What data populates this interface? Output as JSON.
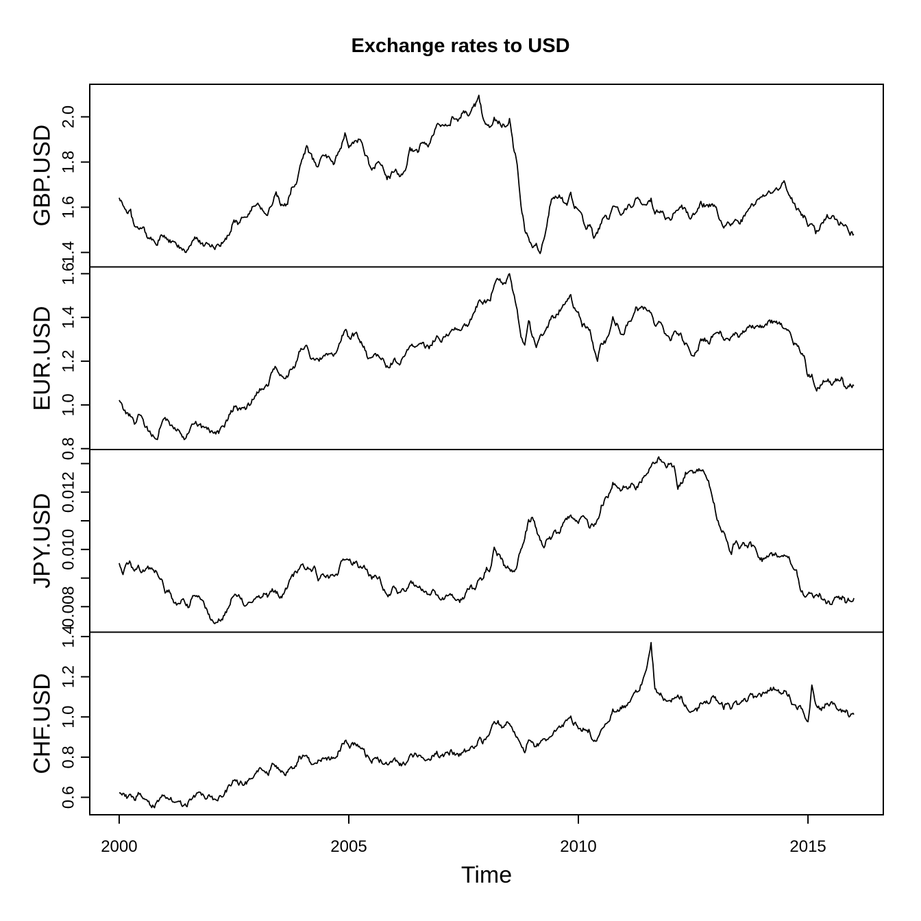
{
  "chart_data": {
    "type": "line",
    "title": "Exchange rates to USD",
    "xlabel": "Time",
    "line_color": "#000000",
    "background_color": "#ffffff",
    "grid": false,
    "legend": "none",
    "xlim": [
      1999.36,
      2016.64
    ],
    "x_tick_values": [
      2000,
      2005,
      2010,
      2015
    ],
    "x_tick_labels": [
      "2000",
      "2005",
      "2010",
      "2015"
    ],
    "x_start": 2000.0,
    "x_step_years": 0.0833333,
    "x_end": 2016.0,
    "panels": [
      {
        "label": "GBP.USD",
        "ylim": [
          1.336,
          2.144
        ],
        "ytick_values": [
          1.4,
          1.6,
          1.8,
          2.0
        ],
        "ytick_labels": [
          "1.4",
          "1.6",
          "1.8",
          "2.0"
        ],
        "values": [
          1.642,
          1.61,
          1.583,
          1.58,
          1.51,
          1.505,
          1.51,
          1.49,
          1.45,
          1.462,
          1.432,
          1.483,
          1.47,
          1.452,
          1.44,
          1.432,
          1.42,
          1.402,
          1.412,
          1.44,
          1.462,
          1.452,
          1.43,
          1.452,
          1.43,
          1.421,
          1.422,
          1.44,
          1.462,
          1.49,
          1.552,
          1.53,
          1.552,
          1.56,
          1.572,
          1.601,
          1.62,
          1.6,
          1.582,
          1.578,
          1.622,
          1.66,
          1.62,
          1.59,
          1.622,
          1.68,
          1.69,
          1.752,
          1.82,
          1.868,
          1.83,
          1.8,
          1.782,
          1.82,
          1.84,
          1.81,
          1.79,
          1.83,
          1.86,
          1.932,
          1.878,
          1.89,
          1.89,
          1.9,
          1.85,
          1.81,
          1.752,
          1.78,
          1.8,
          1.77,
          1.73,
          1.74,
          1.77,
          1.748,
          1.74,
          1.77,
          1.868,
          1.84,
          1.84,
          1.89,
          1.88,
          1.88,
          1.91,
          1.962,
          1.96,
          1.958,
          1.951,
          1.99,
          1.982,
          1.99,
          2.032,
          2.01,
          2.022,
          2.05,
          2.09,
          2.002,
          1.972,
          1.962,
          1.99,
          1.98,
          1.962,
          1.962,
          1.99,
          1.87,
          1.8,
          1.62,
          1.5,
          1.468,
          1.42,
          1.432,
          1.405,
          1.47,
          1.552,
          1.642,
          1.64,
          1.652,
          1.63,
          1.62,
          1.66,
          1.61,
          1.6,
          1.562,
          1.51,
          1.532,
          1.462,
          1.48,
          1.532,
          1.57,
          1.552,
          1.59,
          1.6,
          1.56,
          1.58,
          1.61,
          1.608,
          1.64,
          1.632,
          1.62,
          1.61,
          1.632,
          1.572,
          1.578,
          1.59,
          1.552,
          1.552,
          1.58,
          1.582,
          1.6,
          1.59,
          1.552,
          1.56,
          1.57,
          1.612,
          1.61,
          1.6,
          1.618,
          1.59,
          1.552,
          1.51,
          1.53,
          1.528,
          1.54,
          1.52,
          1.55,
          1.582,
          1.61,
          1.61,
          1.642,
          1.65,
          1.662,
          1.662,
          1.68,
          1.682,
          1.7,
          1.712,
          1.67,
          1.63,
          1.6,
          1.578,
          1.558,
          1.52,
          1.542,
          1.49,
          1.508,
          1.53,
          1.562,
          1.56,
          1.552,
          1.53,
          1.532,
          1.51,
          1.49,
          1.48
        ]
      },
      {
        "label": "EUR.USD",
        "ylim": [
          0.796,
          1.631
        ],
        "ytick_values": [
          0.8,
          1.0,
          1.2,
          1.4,
          1.6
        ],
        "ytick_labels": [
          "0.8",
          "1.0",
          "1.2",
          "1.4",
          "1.6"
        ],
        "values": [
          1.022,
          0.983,
          0.962,
          0.948,
          0.908,
          0.952,
          0.94,
          0.9,
          0.872,
          0.85,
          0.858,
          0.92,
          0.94,
          0.922,
          0.9,
          0.892,
          0.872,
          0.852,
          0.862,
          0.9,
          0.912,
          0.906,
          0.888,
          0.89,
          0.88,
          0.87,
          0.876,
          0.89,
          0.92,
          0.958,
          0.99,
          0.978,
          0.982,
          0.982,
          1.0,
          1.032,
          1.062,
          1.078,
          1.08,
          1.088,
          1.158,
          1.168,
          1.13,
          1.11,
          1.13,
          1.17,
          1.172,
          1.242,
          1.262,
          1.268,
          1.228,
          1.2,
          1.2,
          1.212,
          1.228,
          1.22,
          1.222,
          1.25,
          1.3,
          1.35,
          1.31,
          1.32,
          1.318,
          1.292,
          1.268,
          1.216,
          1.204,
          1.23,
          1.222,
          1.2,
          1.178,
          1.19,
          1.21,
          1.192,
          1.202,
          1.23,
          1.28,
          1.268,
          1.268,
          1.28,
          1.272,
          1.262,
          1.29,
          1.32,
          1.3,
          1.31,
          1.33,
          1.352,
          1.35,
          1.342,
          1.372,
          1.362,
          1.39,
          1.432,
          1.47,
          1.458,
          1.472,
          1.48,
          1.552,
          1.578,
          1.558,
          1.558,
          1.59,
          1.5,
          1.432,
          1.31,
          1.272,
          1.4,
          1.31,
          1.272,
          1.302,
          1.32,
          1.362,
          1.402,
          1.41,
          1.43,
          1.458,
          1.482,
          1.498,
          1.44,
          1.432,
          1.368,
          1.358,
          1.34,
          1.258,
          1.212,
          1.28,
          1.29,
          1.308,
          1.39,
          1.368,
          1.322,
          1.34,
          1.368,
          1.402,
          1.448,
          1.432,
          1.44,
          1.43,
          1.432,
          1.37,
          1.372,
          1.358,
          1.308,
          1.292,
          1.322,
          1.32,
          1.316,
          1.28,
          1.242,
          1.222,
          1.24,
          1.29,
          1.298,
          1.282,
          1.312,
          1.33,
          1.338,
          1.3,
          1.302,
          1.3,
          1.32,
          1.31,
          1.332,
          1.34,
          1.362,
          1.35,
          1.372,
          1.362,
          1.37,
          1.382,
          1.382,
          1.372,
          1.362,
          1.352,
          1.332,
          1.29,
          1.268,
          1.248,
          1.218,
          1.13,
          1.132,
          1.062,
          1.082,
          1.118,
          1.12,
          1.098,
          1.112,
          1.122,
          1.12,
          1.062,
          1.09,
          1.088
        ]
      },
      {
        "label": "JPY.USD",
        "ylim": [
          0.00711,
          0.01349
        ],
        "ytick_values": [
          0.008,
          0.009,
          0.01,
          0.011,
          0.012,
          0.013
        ],
        "ytick_labels": [
          "0.008",
          "",
          "0.010",
          "",
          "0.012",
          ""
        ],
        "values": [
          0.00952,
          0.00917,
          0.00943,
          0.00952,
          0.00926,
          0.00943,
          0.00926,
          0.00926,
          0.00935,
          0.00926,
          0.00917,
          0.00893,
          0.00855,
          0.00862,
          0.0082,
          0.00806,
          0.0082,
          0.0082,
          0.008,
          0.00826,
          0.0084,
          0.00826,
          0.0082,
          0.00787,
          0.00752,
          0.00746,
          0.00763,
          0.00763,
          0.00787,
          0.00813,
          0.00847,
          0.0084,
          0.00826,
          0.00806,
          0.0082,
          0.0082,
          0.00847,
          0.0084,
          0.00847,
          0.00833,
          0.00855,
          0.00847,
          0.0084,
          0.0084,
          0.0087,
          0.00909,
          0.00917,
          0.00926,
          0.00943,
          0.00935,
          0.00926,
          0.00935,
          0.00893,
          0.00917,
          0.00909,
          0.00901,
          0.00909,
          0.00917,
          0.00952,
          0.00962,
          0.00971,
          0.00952,
          0.00952,
          0.00935,
          0.00935,
          0.00917,
          0.00893,
          0.00909,
          0.00901,
          0.0087,
          0.0084,
          0.00847,
          0.0087,
          0.00847,
          0.00855,
          0.00855,
          0.00893,
          0.00877,
          0.00862,
          0.00862,
          0.00855,
          0.0084,
          0.00855,
          0.00847,
          0.00833,
          0.00826,
          0.00847,
          0.0084,
          0.00826,
          0.0082,
          0.00826,
          0.00862,
          0.0087,
          0.00862,
          0.00901,
          0.00893,
          0.00935,
          0.00935,
          0.01,
          0.0098,
          0.00962,
          0.00935,
          0.00935,
          0.00917,
          0.00943,
          0.01,
          0.01042,
          0.01099,
          0.01111,
          0.01075,
          0.01031,
          0.0101,
          0.01042,
          0.01042,
          0.01064,
          0.01053,
          0.01099,
          0.01111,
          0.01124,
          0.01111,
          0.01099,
          0.01111,
          0.01111,
          0.01075,
          0.01087,
          0.01099,
          0.01149,
          0.01176,
          0.0119,
          0.01235,
          0.0122,
          0.01205,
          0.0122,
          0.01205,
          0.01235,
          0.01205,
          0.01235,
          0.0125,
          0.01266,
          0.01299,
          0.01299,
          0.01316,
          0.01299,
          0.01282,
          0.01299,
          0.01282,
          0.0122,
          0.01235,
          0.01266,
          0.01266,
          0.01266,
          0.01282,
          0.01282,
          0.01266,
          0.01235,
          0.0119,
          0.01124,
          0.01075,
          0.01053,
          0.0102,
          0.0099,
          0.01031,
          0.0101,
          0.0102,
          0.0101,
          0.0102,
          0.01,
          0.00971,
          0.00962,
          0.0098,
          0.0098,
          0.0098,
          0.0098,
          0.0098,
          0.0098,
          0.00971,
          0.00935,
          0.00926,
          0.00862,
          0.0084,
          0.00847,
          0.0084,
          0.00833,
          0.0084,
          0.00826,
          0.00813,
          0.00813,
          0.00826,
          0.00833,
          0.00833,
          0.00813,
          0.00826,
          0.0083
        ]
      },
      {
        "label": "CHF.USD",
        "ylim": [
          0.513,
          1.422
        ],
        "ytick_values": [
          0.6,
          0.8,
          1.0,
          1.2,
          1.4
        ],
        "ytick_labels": [
          "0.6",
          "0.8",
          "1.0",
          "1.2",
          "1.4"
        ],
        "values": [
          0.621,
          0.61,
          0.602,
          0.599,
          0.581,
          0.61,
          0.602,
          0.581,
          0.568,
          0.555,
          0.57,
          0.61,
          0.61,
          0.6,
          0.582,
          0.578,
          0.57,
          0.558,
          0.57,
          0.59,
          0.612,
          0.61,
          0.608,
          0.6,
          0.598,
          0.59,
          0.6,
          0.612,
          0.632,
          0.66,
          0.682,
          0.67,
          0.672,
          0.672,
          0.682,
          0.712,
          0.722,
          0.738,
          0.73,
          0.72,
          0.77,
          0.762,
          0.73,
          0.712,
          0.722,
          0.75,
          0.752,
          0.8,
          0.8,
          0.792,
          0.782,
          0.772,
          0.778,
          0.792,
          0.8,
          0.79,
          0.792,
          0.81,
          0.85,
          0.878,
          0.852,
          0.858,
          0.86,
          0.84,
          0.828,
          0.798,
          0.778,
          0.79,
          0.782,
          0.778,
          0.758,
          0.762,
          0.778,
          0.762,
          0.764,
          0.778,
          0.818,
          0.812,
          0.808,
          0.812,
          0.8,
          0.792,
          0.81,
          0.82,
          0.802,
          0.81,
          0.822,
          0.828,
          0.818,
          0.812,
          0.832,
          0.832,
          0.85,
          0.852,
          0.892,
          0.882,
          0.902,
          0.922,
          0.992,
          0.978,
          0.952,
          0.972,
          0.972,
          0.918,
          0.898,
          0.862,
          0.832,
          0.892,
          0.868,
          0.852,
          0.872,
          0.878,
          0.9,
          0.922,
          0.932,
          0.94,
          0.962,
          0.978,
          0.99,
          0.968,
          0.952,
          0.932,
          0.94,
          0.932,
          0.872,
          0.892,
          0.948,
          0.962,
          0.992,
          1.032,
          1.012,
          1.052,
          1.052,
          1.072,
          1.092,
          1.122,
          1.142,
          1.19,
          1.242,
          1.38,
          1.142,
          1.122,
          1.102,
          1.068,
          1.072,
          1.092,
          1.102,
          1.092,
          1.052,
          1.042,
          1.022,
          1.032,
          1.072,
          1.07,
          1.072,
          1.092,
          1.082,
          1.08,
          1.052,
          1.072,
          1.042,
          1.072,
          1.062,
          1.08,
          1.082,
          1.102,
          1.092,
          1.118,
          1.112,
          1.122,
          1.132,
          1.142,
          1.122,
          1.12,
          1.122,
          1.102,
          1.062,
          1.048,
          1.042,
          1.012,
          0.98,
          1.152,
          1.072,
          1.05,
          1.042,
          1.072,
          1.068,
          1.05,
          1.042,
          1.032,
          1.028,
          1.002,
          1.012
        ]
      }
    ]
  }
}
